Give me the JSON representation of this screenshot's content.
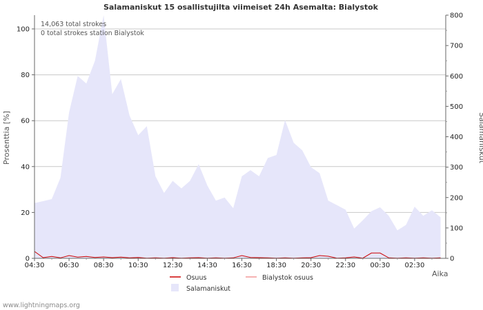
{
  "chart_data": {
    "type": "area",
    "title": "Salamaniskut 15 osallistujilta viimeiset 24h Asemalta: Bialystok",
    "ylabel_left": "Prosenttia  [%]",
    "ylabel_right": "Salamaniskut",
    "xlabel": "Aika",
    "ylim_left": [
      0,
      106
    ],
    "ylim_right": [
      0,
      800
    ],
    "yticks_left": [
      "0",
      "20",
      "40",
      "60",
      "80",
      "100"
    ],
    "yticks_right": [
      "0",
      "100",
      "200",
      "300",
      "400",
      "500",
      "600",
      "700",
      "800"
    ],
    "xtick_labels": [
      "04:30",
      "06:30",
      "08:30",
      "10:30",
      "12:30",
      "14:30",
      "16:30",
      "18:30",
      "20:30",
      "22:30",
      "00:30",
      "02:30"
    ],
    "annotations": [
      "14,063 total strokes",
      "0 total strokes station Bialystok"
    ],
    "x_hours": [
      4.5,
      5.0,
      5.5,
      6.0,
      6.5,
      7.0,
      7.5,
      8.0,
      8.5,
      9.0,
      9.5,
      10.0,
      10.5,
      11.0,
      11.5,
      12.0,
      12.5,
      13.0,
      13.5,
      14.0,
      14.5,
      15.0,
      15.5,
      16.0,
      16.5,
      17.0,
      17.5,
      18.0,
      18.5,
      19.0,
      19.5,
      20.0,
      20.5,
      21.0,
      21.5,
      22.0,
      22.5,
      23.0,
      23.5,
      24.0,
      24.5,
      25.0,
      25.5,
      26.0,
      26.5,
      27.0,
      27.5,
      28.0
    ],
    "series": [
      {
        "name": "Salamaniskut",
        "axis": "right",
        "color": "#e6e6fa",
        "values": [
          182,
          188,
          195,
          265,
          480,
          600,
          575,
          650,
          800,
          540,
          590,
          470,
          405,
          435,
          270,
          215,
          255,
          230,
          255,
          310,
          240,
          190,
          200,
          165,
          270,
          290,
          270,
          330,
          340,
          455,
          380,
          355,
          300,
          280,
          190,
          175,
          160,
          98,
          125,
          155,
          168,
          140,
          92,
          110,
          170,
          140,
          158,
          135
        ]
      },
      {
        "name": "Osuus",
        "axis": "left",
        "color": "#cc0000",
        "values": [
          3,
          0.3,
          0.8,
          0.2,
          1.2,
          0.5,
          0.8,
          0.4,
          0.6,
          0.3,
          0.5,
          0.2,
          0.4,
          0.1,
          0.2,
          0.1,
          0.3,
          0.1,
          0.2,
          0.3,
          0.1,
          0.2,
          0.1,
          0.2,
          1.2,
          0.4,
          0.3,
          0.2,
          0.1,
          0.2,
          0.1,
          0.2,
          0.3,
          1.2,
          0.9,
          0.1,
          0.2,
          0.6,
          0.1,
          2.3,
          2.3,
          0.2,
          0.1,
          0.2,
          0.1,
          0.2,
          0.1,
          0.2
        ]
      },
      {
        "name": "Bialystok osuus",
        "axis": "left",
        "color": "#f29999",
        "values": []
      }
    ],
    "legend": [
      "Osuus",
      "Bialystok osuus",
      "Salamaniskut"
    ]
  },
  "footer": "www.lightningmaps.org"
}
